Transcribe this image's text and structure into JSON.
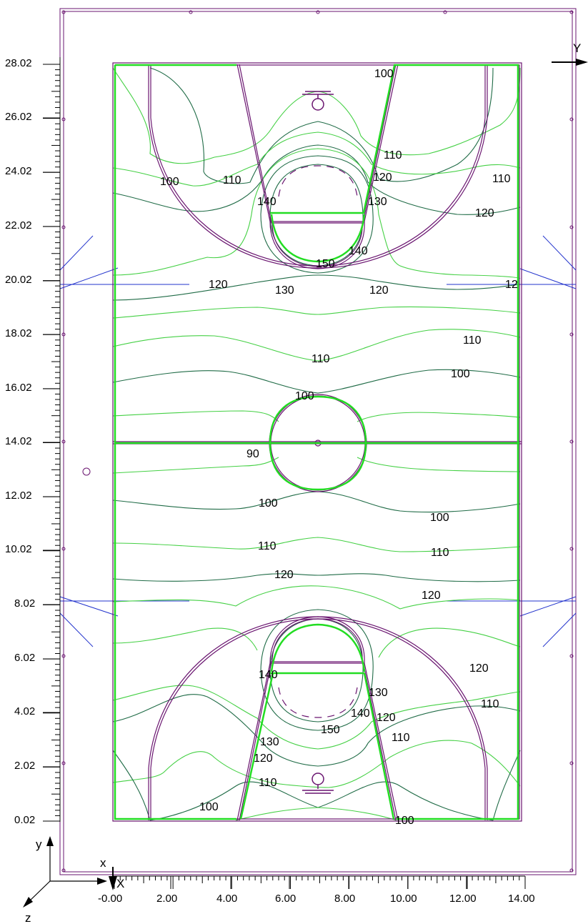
{
  "colors": {
    "court_lines": "#6a1570",
    "contour_light": "#44d044",
    "contour_dark": "#1f6b46",
    "fixture_lines": "#2233cc",
    "bright_green": "#22dd22"
  },
  "axes": {
    "y_ticks": [
      "28.02",
      "26.02",
      "24.02",
      "22.02",
      "20.02",
      "18.02",
      "16.02",
      "14.02",
      "12.02",
      "10.02",
      "8.02",
      "6.02",
      "4.02",
      "2.02",
      "0.02"
    ],
    "x_ticks": [
      "-0.00",
      "2.00",
      "4.00",
      "6.00",
      "8.00",
      "10.00",
      "12.00",
      "14.00"
    ],
    "x_label": "X",
    "y_label": "Y"
  },
  "triad": {
    "x": "x",
    "y": "y",
    "z": "z"
  },
  "contour_labels": [
    "100",
    "110",
    "120",
    "140",
    "130",
    "110",
    "100",
    "120",
    "110",
    "150",
    "140",
    "120",
    "130",
    "120",
    "12",
    "110",
    "110",
    "100",
    "100",
    "90",
    "100",
    "100",
    "110",
    "110",
    "120",
    "120",
    "120",
    "140",
    "130",
    "110",
    "140",
    "120",
    "150",
    "110",
    "130",
    "120",
    "110",
    "100",
    "100"
  ],
  "icons": {
    "light_fixture": "circle-marker",
    "basket": "hoop-icon"
  }
}
